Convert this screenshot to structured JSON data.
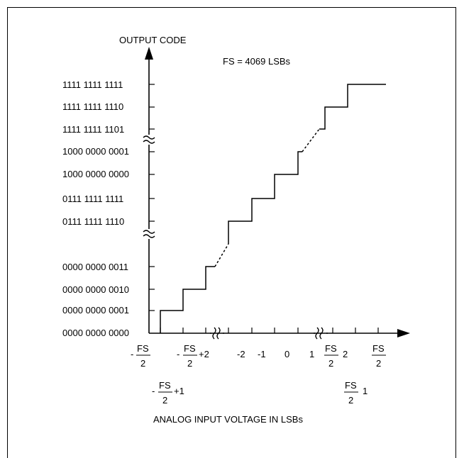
{
  "title": "OUTPUT CODE",
  "fs_note": "FS = 4069 LSBs",
  "x_axis_label": "ANALOG INPUT VOLTAGE IN LSBs",
  "y_codes": [
    "1111 1111 1111",
    "1111 1111 1110",
    "1111 1111 1101",
    "1000 0000 0001",
    "1000 0000 0000",
    "0111 1111 1111",
    "0111 1111 1110",
    "0000 0000 0011",
    "0000 0000 0010",
    "0000 0000 0001",
    "0000 0000 0000"
  ],
  "x_labels": {
    "minus_fs_over_2": {
      "sign": "-",
      "num": "FS",
      "den": "2",
      "suffix": ""
    },
    "minus_fs_over_2_plus_2": {
      "sign": "-",
      "num": "FS",
      "den": "2",
      "suffix": "+2"
    },
    "n2": "-2",
    "n1": "-1",
    "z": "0",
    "p1": "1",
    "fs_over_2_minus_2": {
      "num": "FS",
      "den": "2",
      "suffix": "2"
    },
    "fs_over_2": {
      "num": "FS",
      "den": "2"
    },
    "minus_fs_over_2_plus_1": {
      "sign": "-",
      "num": "FS",
      "den": "2",
      "suffix": "+1"
    },
    "fs_over_2_minus_1": {
      "num": "FS",
      "den": "2",
      "suffix": "1"
    }
  }
}
